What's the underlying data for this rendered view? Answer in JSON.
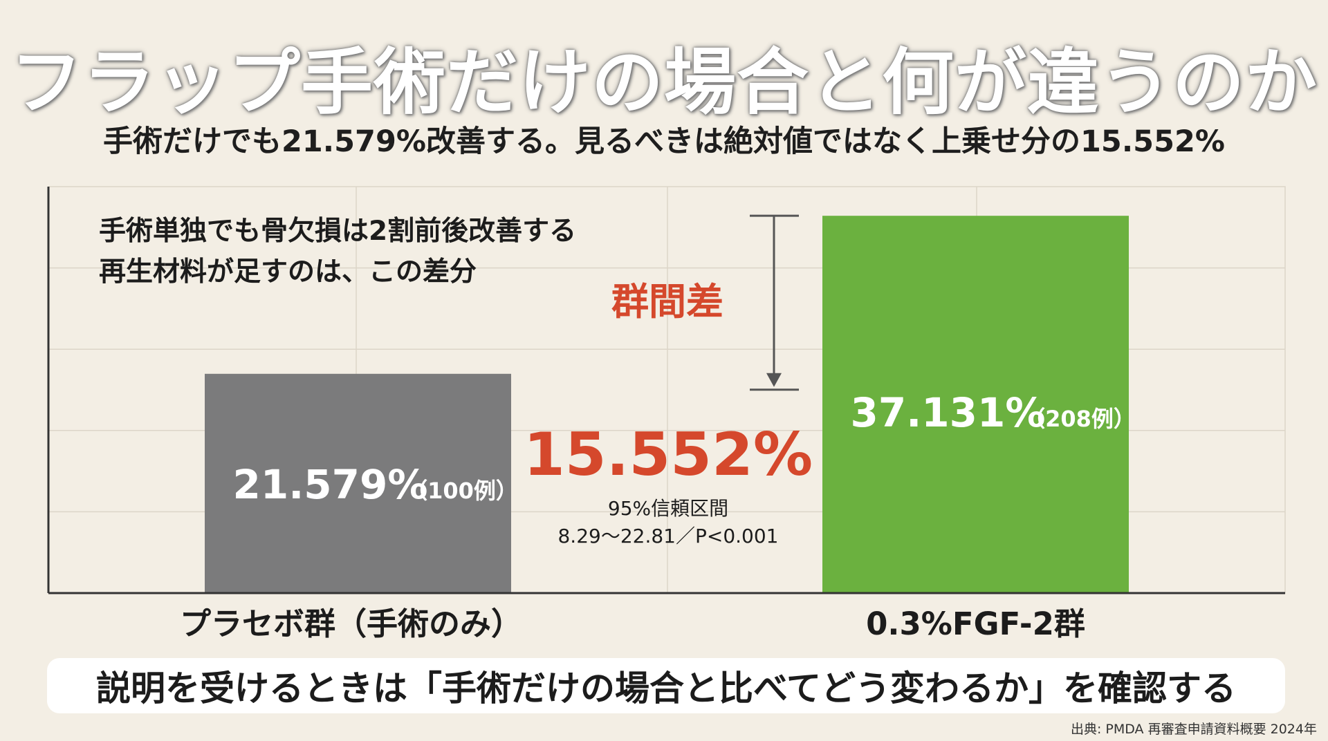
{
  "title": "フラップ手術だけの場合と何が違うのか",
  "subtitle": "手術だけでも21.579%改善する。見るべきは絶対値ではなく上乗せ分の15.552%",
  "annotation": {
    "line1": "手術単独でも骨欠損は2割前後改善する",
    "line2": "再生材料が足すのは、この差分"
  },
  "difference": {
    "label": "群間差",
    "value": "15.552%",
    "ci_label": "95%信頼区間",
    "ci_detail": "8.29〜22.81／P<0.001"
  },
  "footer": "説明を受けるときは「手術だけの場合と比べてどう変わるか」を確認する",
  "source": "出典: PMDA 再審査申請資料概要 2024年",
  "colors": {
    "placebo_bar": "#7b7b7c",
    "fgf_bar": "#6bb13f",
    "accent_red": "#d5482c",
    "grid": "#dcd5c8",
    "axis": "#333333",
    "background": "#f3eee4"
  },
  "chart_data": {
    "type": "bar",
    "categories": [
      "プラセボ群（手術のみ）",
      "0.3%FGF-2群"
    ],
    "values": [
      21.579,
      37.131
    ],
    "value_labels": [
      "21.579%",
      "37.131%"
    ],
    "n_labels": [
      "（100例）",
      "（208例）"
    ],
    "ylim": [
      0,
      40
    ],
    "grid": true,
    "xlabel": "",
    "ylabel": ""
  }
}
